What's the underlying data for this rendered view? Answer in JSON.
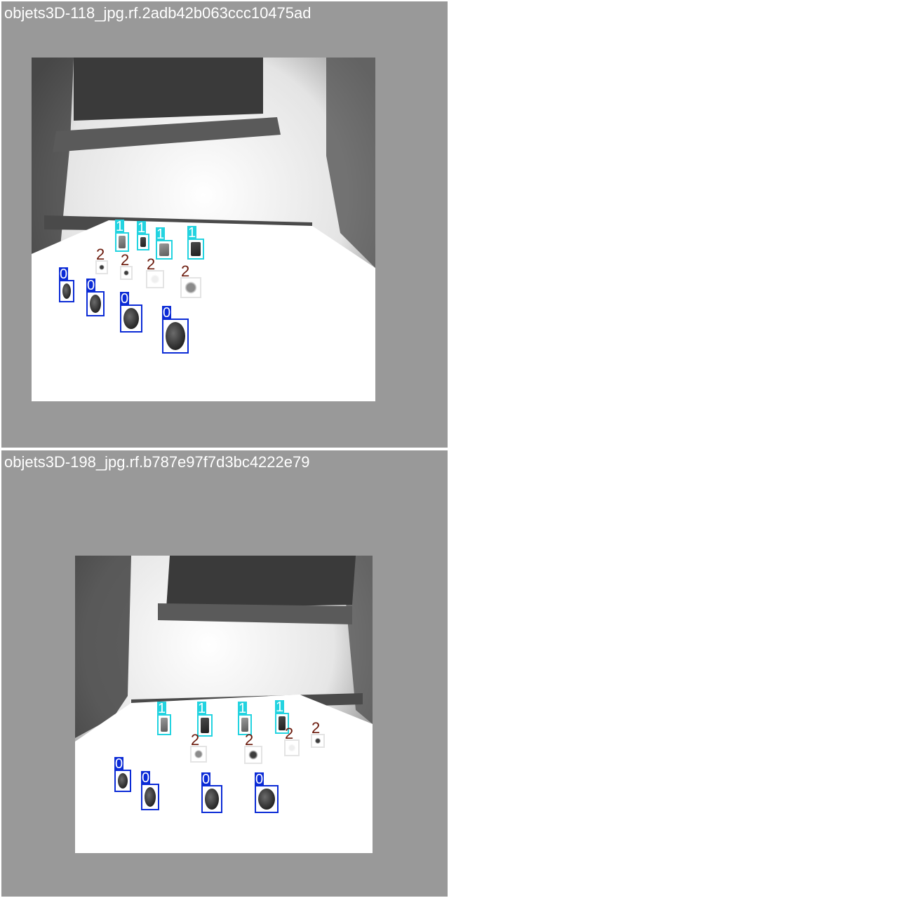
{
  "tiles": [
    {
      "filename": "objets3D-118_jpg.rf.2adb42b063ccc10475ad"
    },
    {
      "filename": "objets3D-198_jpg.rf.b787e97f7d3bc4222e79"
    }
  ],
  "class_labels": {
    "c0": "0",
    "c1": "1",
    "c2": "2"
  },
  "colors": {
    "class_0": "#0b2bd6",
    "class_1": "#23d3e0",
    "class_2_text": "#6b1a0c",
    "tile_background": "#999999"
  }
}
